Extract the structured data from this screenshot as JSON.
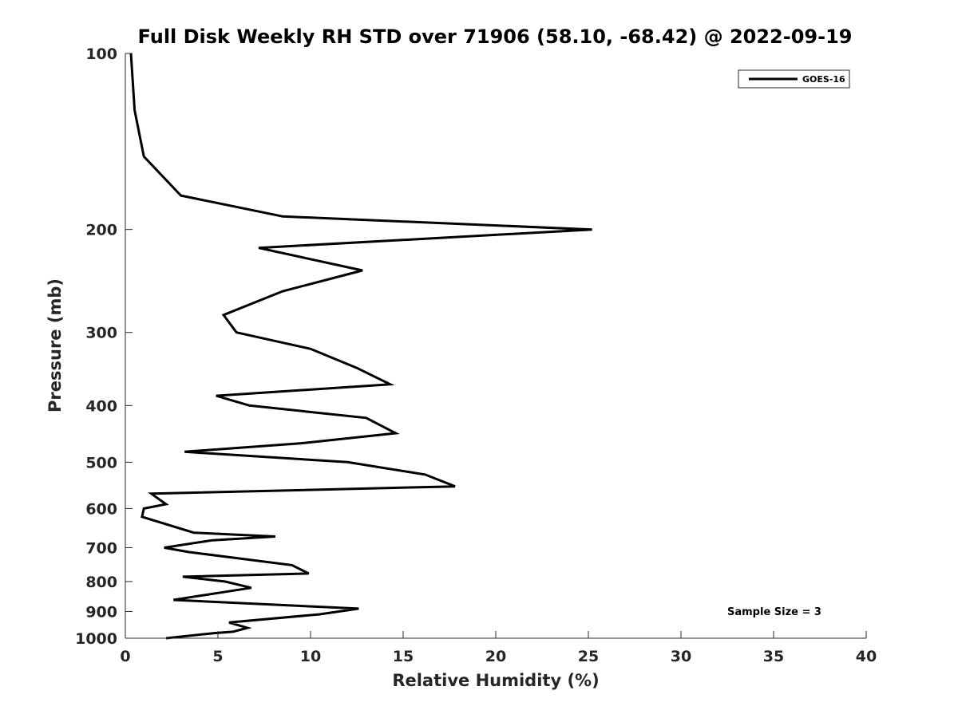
{
  "chart_data": {
    "type": "line",
    "title": "Full Disk Weekly RH STD over 71906 (58.10, -68.42) @ 2022-09-19",
    "xlabel": "Relative Humidity (%)",
    "ylabel": "Pressure (mb)",
    "xlim": [
      0,
      40
    ],
    "ylim": [
      1000,
      100
    ],
    "y_scale": "log",
    "x_ticks": [
      "0",
      "5",
      "10",
      "15",
      "20",
      "25",
      "30",
      "35",
      "40"
    ],
    "y_ticks": [
      "100",
      "200",
      "300",
      "400",
      "500",
      "600",
      "700",
      "800",
      "900",
      "1000"
    ],
    "grid": false,
    "legend_position": "top-right",
    "annotation": "Sample Size = 3",
    "colors": {
      "line": "#000000",
      "axis": "#262626"
    },
    "series": [
      {
        "name": "GOES-16",
        "points": [
          [
            0.3,
            100
          ],
          [
            0.5,
            125
          ],
          [
            1.0,
            150
          ],
          [
            3.0,
            175
          ],
          [
            8.5,
            190
          ],
          [
            25.2,
            200
          ],
          [
            7.2,
            215
          ],
          [
            12.8,
            235
          ],
          [
            8.5,
            255
          ],
          [
            5.3,
            280
          ],
          [
            6.0,
            300
          ],
          [
            10.0,
            320
          ],
          [
            12.5,
            345
          ],
          [
            14.3,
            368
          ],
          [
            4.9,
            385
          ],
          [
            6.7,
            400
          ],
          [
            13.0,
            420
          ],
          [
            14.6,
            446
          ],
          [
            9.5,
            464
          ],
          [
            3.2,
            480
          ],
          [
            12.0,
            500
          ],
          [
            16.2,
            525
          ],
          [
            17.8,
            550
          ],
          [
            1.4,
            566
          ],
          [
            2.2,
            590
          ],
          [
            1.0,
            600
          ],
          [
            0.9,
            620
          ],
          [
            3.7,
            660
          ],
          [
            8.1,
            670
          ],
          [
            4.7,
            680
          ],
          [
            2.1,
            700
          ],
          [
            3.4,
            712
          ],
          [
            9.0,
            750
          ],
          [
            9.9,
            775
          ],
          [
            3.1,
            785
          ],
          [
            5.4,
            800
          ],
          [
            6.8,
            820
          ],
          [
            3.6,
            850
          ],
          [
            2.6,
            860
          ],
          [
            12.6,
            890
          ],
          [
            10.5,
            910
          ],
          [
            5.6,
            940
          ],
          [
            6.6,
            960
          ],
          [
            5.8,
            975
          ],
          [
            4.8,
            980
          ],
          [
            2.2,
            1000
          ]
        ]
      }
    ]
  }
}
